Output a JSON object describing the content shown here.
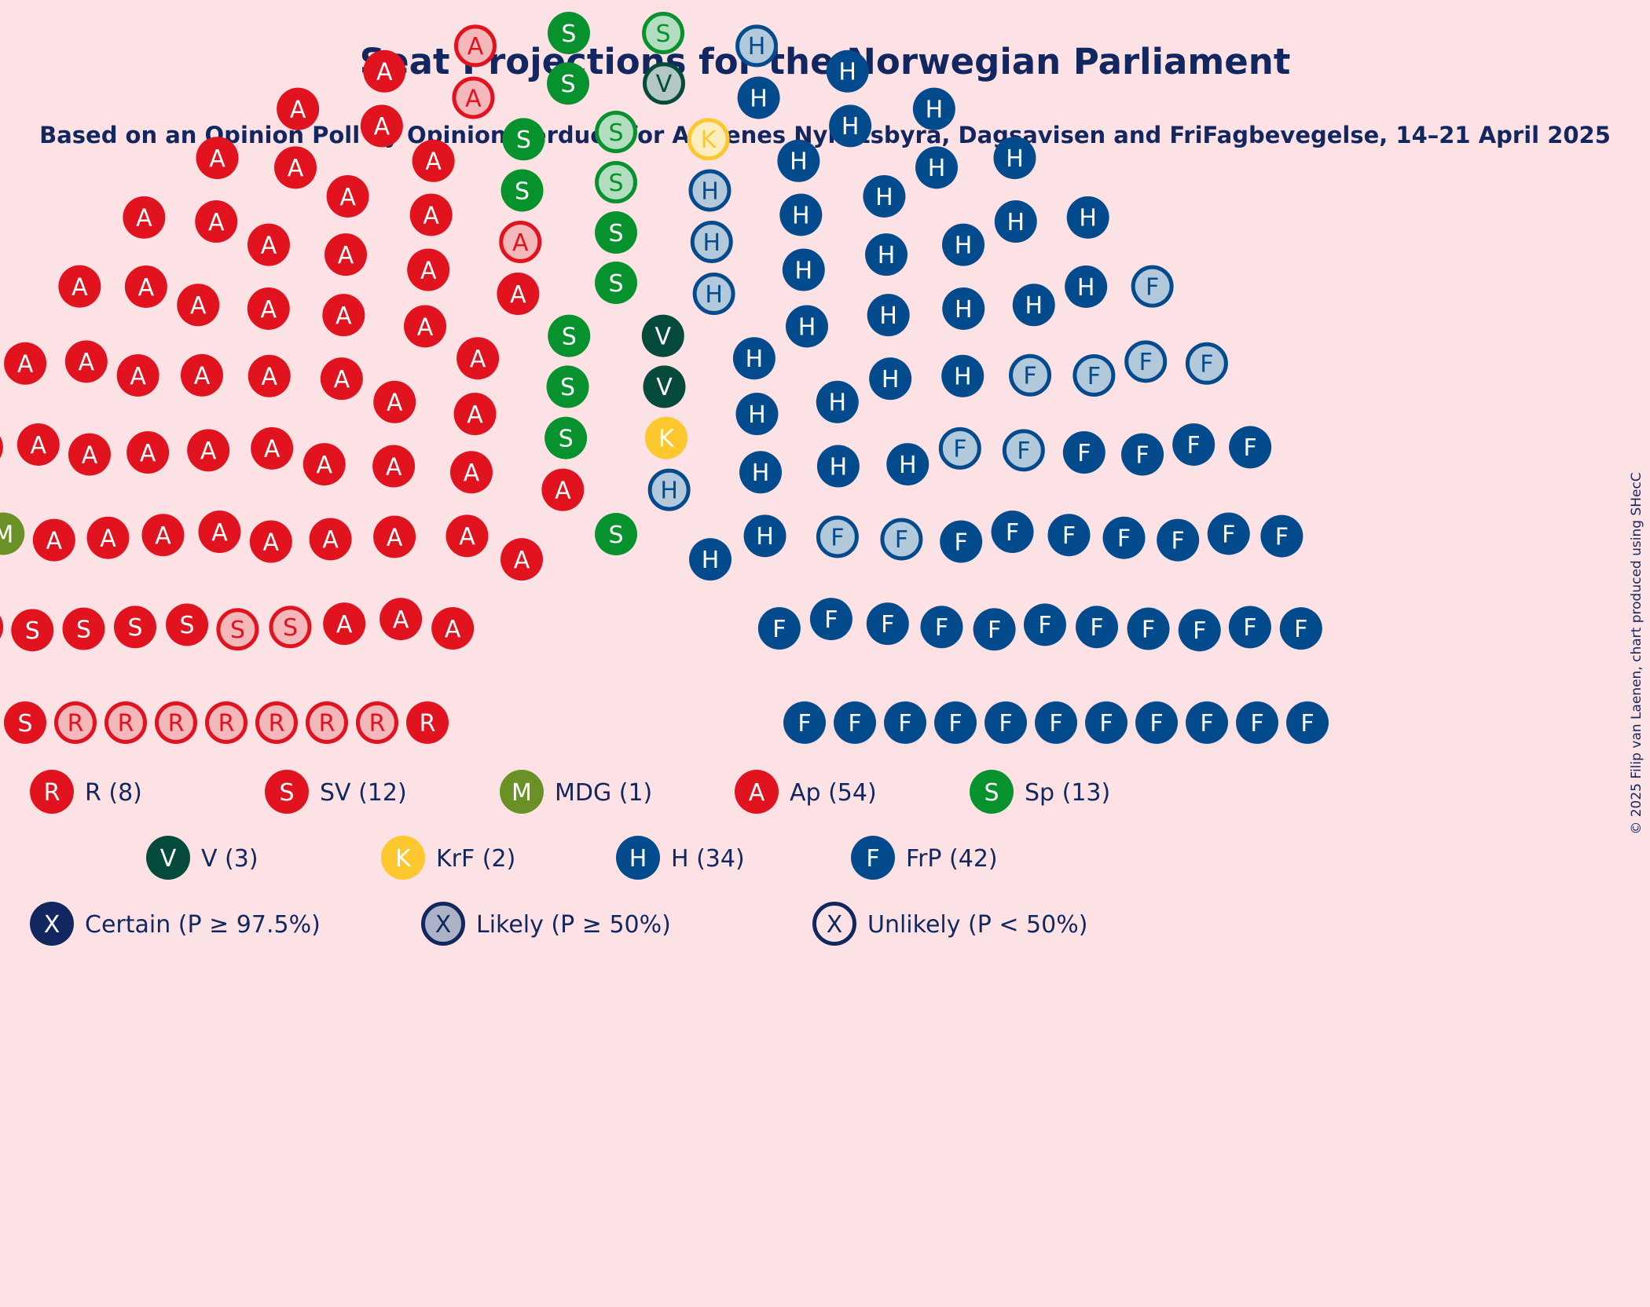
{
  "title": "Seat Projections for the Norwegian Parliament",
  "subtitle": "Based on an Opinion Poll by Opinion Perduco for Avisenes Nyhetsbyrå, Dagsavisen and FriFagbevegelse, 14–21 April 2025",
  "copyright": "© 2025 Filip van Laenen, chart produced using SHecC",
  "chart_data": {
    "type": "parliament",
    "total_seats": 169,
    "parties": [
      {
        "letter": "R",
        "name": "R (8)",
        "seats": 8,
        "certain": 1,
        "likely": 0,
        "unlikely": 7,
        "color": "#e0131f"
      },
      {
        "letter": "S",
        "name": "SV (12)",
        "seats": 12,
        "certain": 9,
        "likely": 0,
        "unlikely": 3,
        "color": "#e0131f"
      },
      {
        "letter": "M",
        "name": "MDG (1)",
        "seats": 1,
        "certain": 1,
        "likely": 0,
        "unlikely": 0,
        "color": "#6a9126"
      },
      {
        "letter": "A",
        "name": "Ap (54)",
        "seats": 54,
        "certain": 51,
        "likely": 0,
        "unlikely": 3,
        "color": "#e0131f"
      },
      {
        "letter": "S",
        "name": "Sp (13)",
        "seats": 13,
        "certain": 10,
        "likely": 0,
        "unlikely": 3,
        "color": "#07922e"
      },
      {
        "letter": "V",
        "name": "V (3)",
        "seats": 3,
        "certain": 2,
        "likely": 0,
        "unlikely": 1,
        "color": "#054a3b"
      },
      {
        "letter": "K",
        "name": "KrF (2)",
        "seats": 2,
        "certain": 1,
        "likely": 0,
        "unlikely": 1,
        "color": "#fdc82f"
      },
      {
        "letter": "H",
        "name": "H (34)",
        "seats": 34,
        "certain": 29,
        "likely": 0,
        "unlikely": 5,
        "color": "#044b8d"
      },
      {
        "letter": "F",
        "name": "FrP (42)",
        "seats": 42,
        "certain": 33,
        "likely": 0,
        "unlikely": 9,
        "color": "#044b8d"
      }
    ],
    "status_legend": [
      {
        "letter": "X",
        "label": "Certain (P ≥ 97.5%)",
        "style": "certain"
      },
      {
        "letter": "X",
        "label": "Likely (P ≥ 50%)",
        "style": "likely"
      },
      {
        "letter": "X",
        "label": "Unlikely (P < 50%)",
        "style": "unlikely"
      }
    ],
    "status_color": "#12275f"
  }
}
